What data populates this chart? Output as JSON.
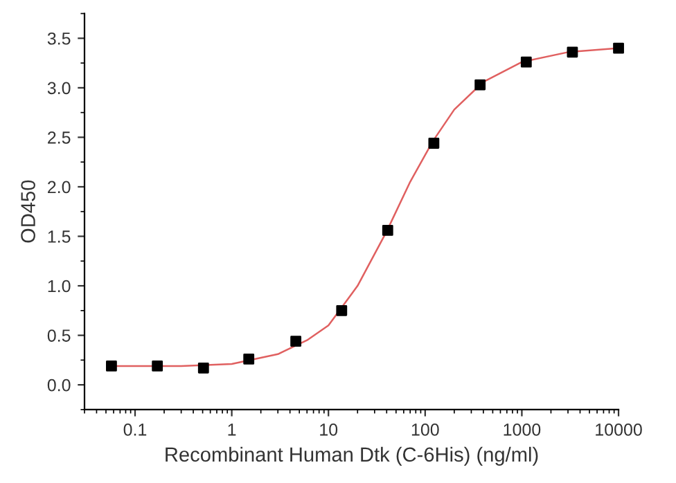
{
  "chart_data": {
    "type": "scatter",
    "xlabel": "Recombinant Human Dtk (C-6His) (ng/ml)",
    "ylabel": "OD450",
    "log": "x",
    "xlim": [
      0.03,
      10000
    ],
    "xticks": [
      0.1,
      1,
      10,
      100,
      1000,
      10000
    ],
    "ylim": [
      -0.25,
      3.75
    ],
    "yticks": [
      {
        "value": 0,
        "label": "0.0"
      },
      0.5,
      {
        "value": 1,
        "label": "1.0"
      },
      1.5,
      {
        "value": 2,
        "label": "2.0"
      },
      2.5,
      {
        "value": 3,
        "label": "3.0"
      },
      3.5
    ],
    "grid": false,
    "series": [
      {
        "marker": "square",
        "color": "#000000",
        "x": [
          0.057,
          0.17,
          0.51,
          1.5,
          4.6,
          13.7,
          41,
          123,
          370,
          1111,
          3333,
          10000
        ],
        "values": [
          0.19,
          0.19,
          0.17,
          0.26,
          0.44,
          0.75,
          1.56,
          2.44,
          3.03,
          3.26,
          3.36,
          3.4
        ]
      },
      {
        "type": "line",
        "marker": "none",
        "line_style": "solid",
        "color": "#e06060",
        "x": [
          0.057,
          0.3,
          1,
          3,
          6,
          10,
          20,
          40,
          70,
          120,
          200,
          400,
          1000,
          3000,
          10000
        ],
        "values": [
          0.19,
          0.19,
          0.21,
          0.31,
          0.45,
          0.6,
          1.0,
          1.55,
          2.05,
          2.46,
          2.78,
          3.06,
          3.26,
          3.36,
          3.4
        ]
      }
    ]
  }
}
